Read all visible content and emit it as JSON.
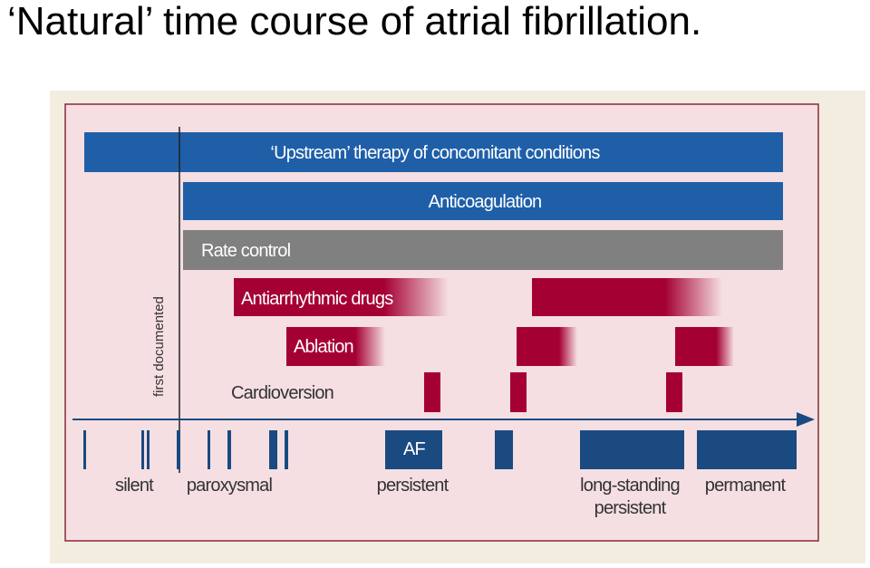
{
  "title": "‘Natural’ time course of  atrial fibrillation.",
  "therapies": {
    "upstream": "‘Upstream’ therapy of concomitant conditions",
    "anticoagulation": "Anticoagulation",
    "rate_control": "Rate control",
    "antiarrhythmic": "Antiarrhythmic drugs",
    "ablation": "Ablation",
    "cardioversion": "Cardioversion"
  },
  "first_documented": "first documented",
  "af": "AF",
  "stages": {
    "silent": "silent",
    "paroxysmal": "paroxysmal",
    "persistent": "persistent",
    "long_standing": [
      "long-standing",
      "persistent"
    ],
    "permanent": "permanent"
  }
}
